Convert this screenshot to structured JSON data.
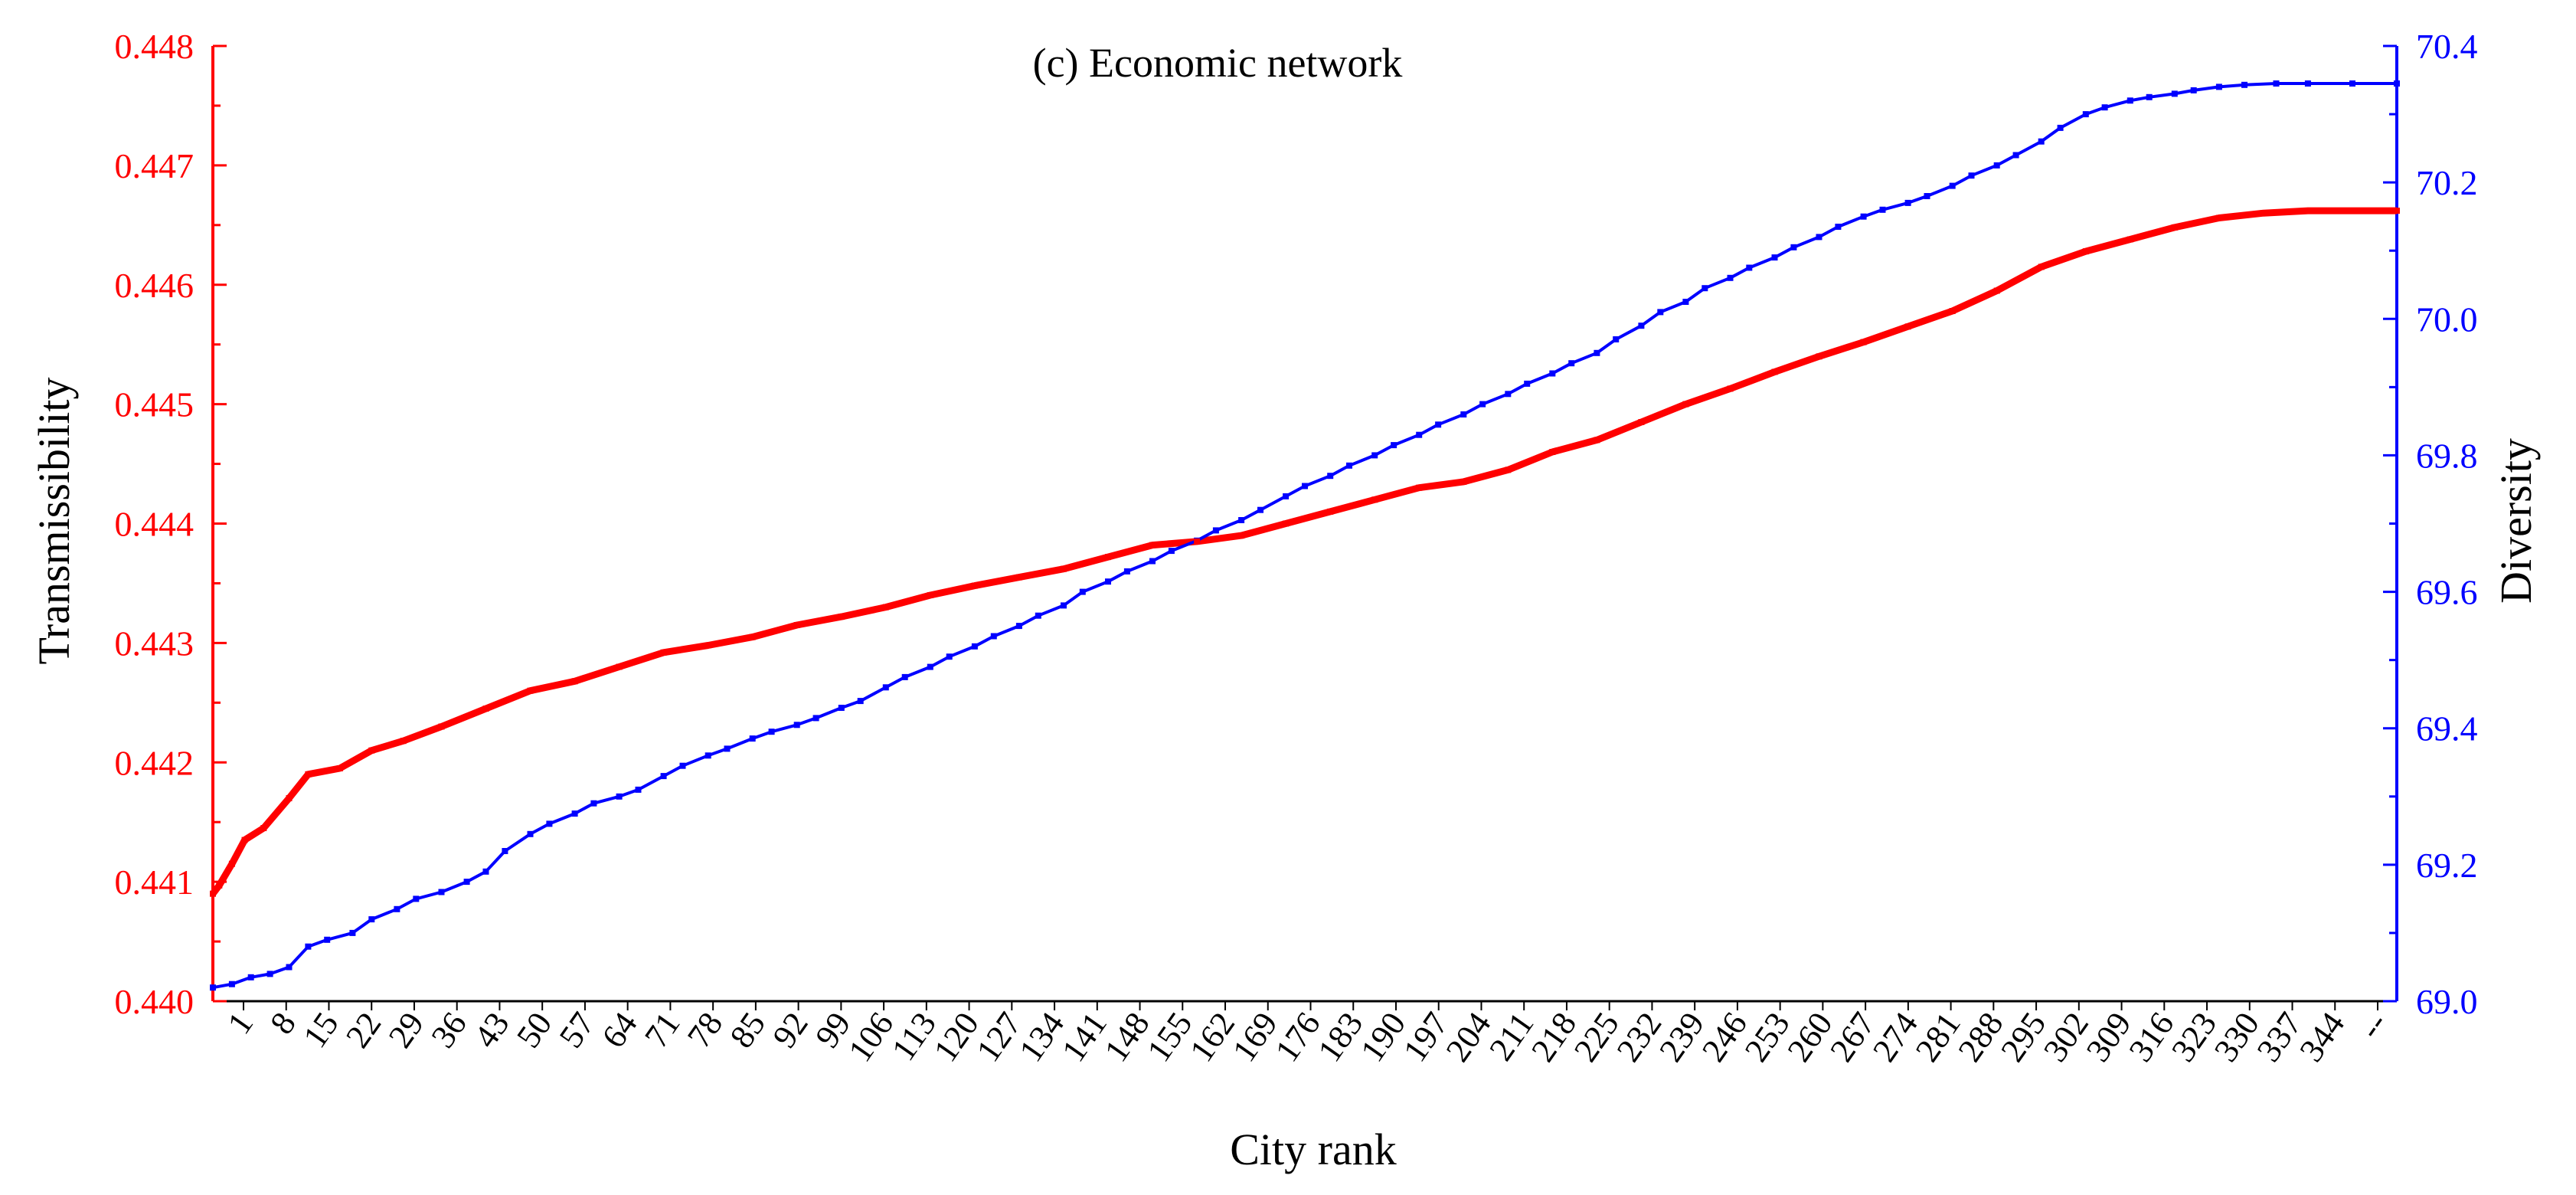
{
  "chart_data": {
    "type": "line",
    "title": "(c) Economic network",
    "xlabel": "City rank",
    "ylabel_left": "Transmissibility",
    "ylabel_right": "Diversity",
    "xlim": [
      0,
      344
    ],
    "ylim_left": [
      0.44,
      0.448
    ],
    "ylim_right": [
      69.0,
      70.4
    ],
    "left_ticks": [
      "0.440",
      "0.441",
      "0.442",
      "0.443",
      "0.444",
      "0.445",
      "0.446",
      "0.447",
      "0.448"
    ],
    "right_ticks": [
      "69.0",
      "69.2",
      "69.4",
      "69.6",
      "69.8",
      "70.0",
      "70.2",
      "70.4"
    ],
    "x_tick_labels": [
      "1",
      "8",
      "15",
      "22",
      "29",
      "36",
      "43",
      "50",
      "57",
      "64",
      "71",
      "78",
      "85",
      "92",
      "99",
      "106",
      "113",
      "120",
      "127",
      "134",
      "141",
      "148",
      "155",
      "162",
      "169",
      "176",
      "183",
      "190",
      "197",
      "204",
      "211",
      "218",
      "225",
      "232",
      "239",
      "246",
      "253",
      "260",
      "267",
      "274",
      "281",
      "288",
      "295",
      "302",
      "309",
      "316",
      "323",
      "330",
      "337",
      "344",
      "--"
    ],
    "grid": false,
    "legend": "none",
    "series": [
      {
        "axis": "left",
        "color": "#ff0000",
        "x": [
          0,
          1,
          3,
          5,
          8,
          12,
          15,
          20,
          25,
          30,
          36,
          43,
          50,
          57,
          64,
          71,
          78,
          85,
          92,
          99,
          106,
          113,
          120,
          127,
          134,
          141,
          148,
          155,
          162,
          169,
          176,
          183,
          190,
          197,
          204,
          211,
          218,
          225,
          232,
          239,
          246,
          253,
          260,
          267,
          274,
          281,
          288,
          295,
          302,
          309,
          316,
          323,
          330,
          337,
          344
        ],
        "values": [
          0.4409,
          0.44097,
          0.44115,
          0.44135,
          0.44145,
          0.4417,
          0.4419,
          0.44195,
          0.4421,
          0.44218,
          0.4423,
          0.44245,
          0.4426,
          0.44268,
          0.4428,
          0.44292,
          0.44298,
          0.44305,
          0.44315,
          0.44322,
          0.4433,
          0.4434,
          0.44348,
          0.44355,
          0.44362,
          0.44372,
          0.44382,
          0.44385,
          0.4439,
          0.444,
          0.4441,
          0.4442,
          0.4443,
          0.44435,
          0.44445,
          0.4446,
          0.4447,
          0.44485,
          0.445,
          0.44513,
          0.44527,
          0.4454,
          0.44552,
          0.44565,
          0.44578,
          0.44595,
          0.44615,
          0.44628,
          0.44638,
          0.44648,
          0.44656,
          0.4466,
          0.44662,
          0.44662,
          0.44662
        ]
      },
      {
        "axis": "right",
        "color": "#0000ff",
        "x": [
          0,
          3,
          6,
          9,
          12,
          15,
          18,
          22,
          25,
          29,
          32,
          36,
          40,
          43,
          46,
          50,
          53,
          57,
          60,
          64,
          67,
          71,
          74,
          78,
          81,
          85,
          88,
          92,
          95,
          99,
          102,
          106,
          109,
          113,
          116,
          120,
          123,
          127,
          130,
          134,
          137,
          141,
          144,
          148,
          151,
          155,
          158,
          162,
          165,
          169,
          172,
          176,
          179,
          183,
          186,
          190,
          193,
          197,
          200,
          204,
          207,
          211,
          214,
          218,
          221,
          225,
          228,
          232,
          235,
          239,
          242,
          246,
          249,
          253,
          256,
          260,
          263,
          267,
          270,
          274,
          277,
          281,
          284,
          288,
          291,
          295,
          298,
          302,
          305,
          309,
          312,
          316,
          320,
          325,
          330,
          337,
          344
        ],
        "values": [
          69.02,
          69.025,
          69.035,
          69.04,
          69.05,
          69.08,
          69.09,
          69.1,
          69.12,
          69.135,
          69.15,
          69.16,
          69.175,
          69.19,
          69.22,
          69.245,
          69.26,
          69.275,
          69.29,
          69.3,
          69.31,
          69.33,
          69.345,
          69.36,
          69.37,
          69.385,
          69.395,
          69.405,
          69.415,
          69.43,
          69.44,
          69.46,
          69.475,
          69.49,
          69.505,
          69.52,
          69.535,
          69.55,
          69.565,
          69.58,
          69.6,
          69.615,
          69.63,
          69.645,
          69.66,
          69.675,
          69.69,
          69.705,
          69.72,
          69.74,
          69.755,
          69.77,
          69.785,
          69.8,
          69.815,
          69.83,
          69.845,
          69.86,
          69.875,
          69.89,
          69.905,
          69.92,
          69.935,
          69.95,
          69.97,
          69.99,
          70.01,
          70.025,
          70.045,
          70.06,
          70.075,
          70.09,
          70.105,
          70.12,
          70.135,
          70.15,
          70.16,
          70.17,
          70.18,
          70.195,
          70.21,
          70.225,
          70.24,
          70.26,
          70.28,
          70.3,
          70.31,
          70.32,
          70.325,
          70.33,
          70.335,
          70.34,
          70.343,
          70.345,
          70.345,
          70.345,
          70.345
        ]
      }
    ]
  }
}
